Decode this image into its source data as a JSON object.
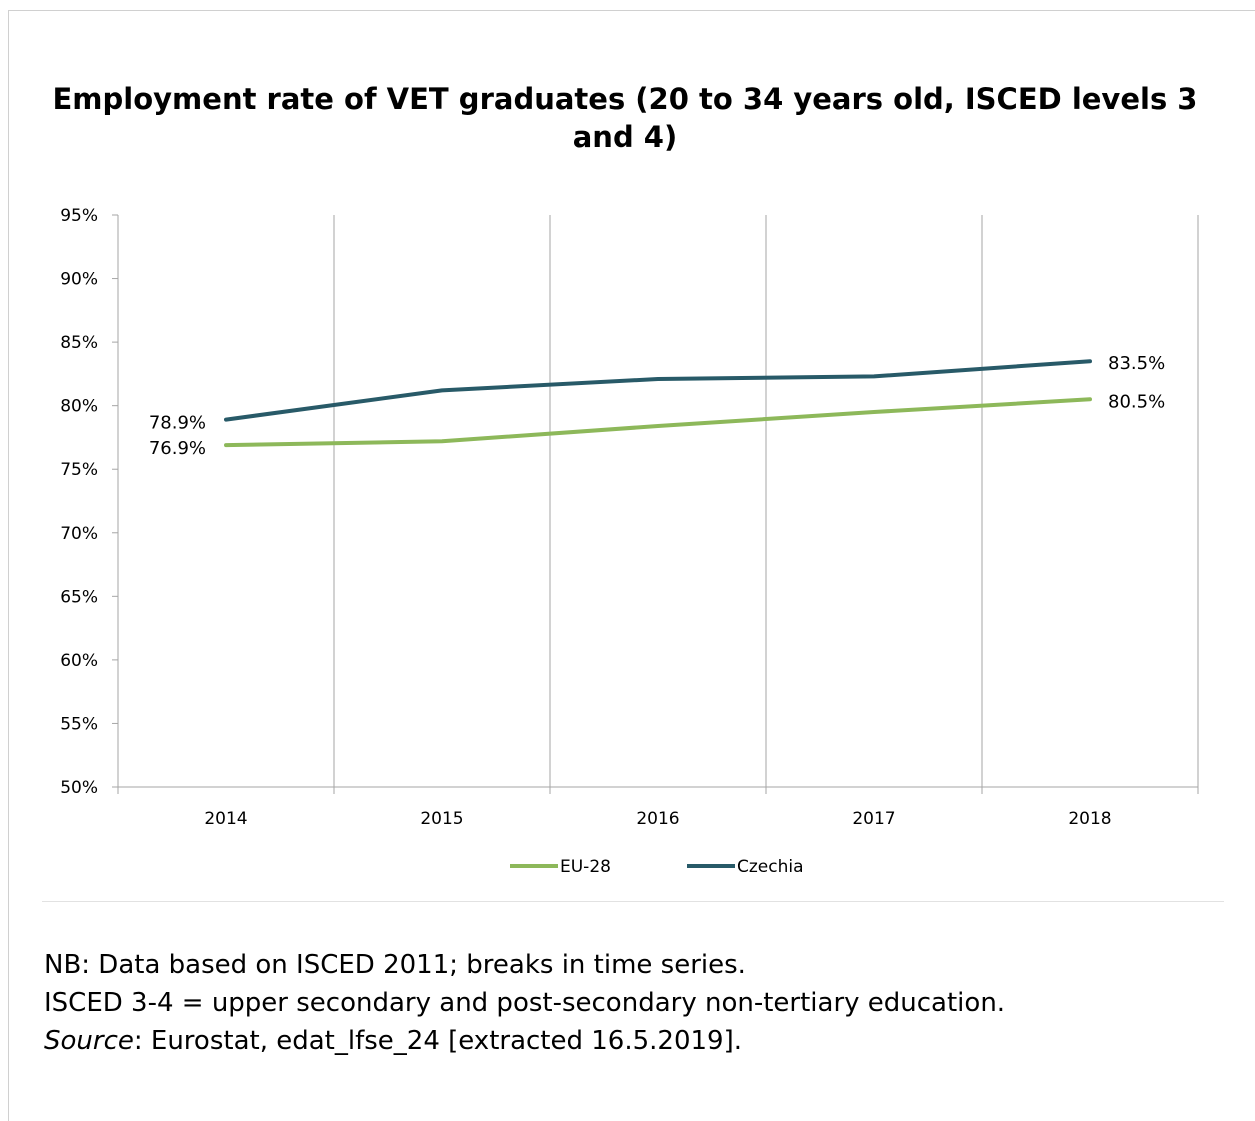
{
  "chart_data": {
    "type": "line",
    "title": "Employment rate of VET graduates (20 to 34 years old, ISCED levels 3 and 4)",
    "categories": [
      "2014",
      "2015",
      "2016",
      "2017",
      "2018"
    ],
    "ylim": [
      50,
      95
    ],
    "y_ticks": [
      50,
      55,
      60,
      65,
      70,
      75,
      80,
      85,
      90,
      95
    ],
    "y_tick_labels": [
      "50%",
      "55%",
      "60%",
      "65%",
      "70%",
      "75%",
      "80%",
      "85%",
      "90%",
      "95%"
    ],
    "xlabel": "",
    "ylabel": "",
    "grid": "vertical",
    "legend_position": "bottom",
    "series": [
      {
        "name": "EU-28",
        "color": "#8db85a",
        "values": [
          76.9,
          77.2,
          78.4,
          79.5,
          80.5
        ],
        "point_labels": [
          "76.9%",
          "",
          "",
          "",
          "80.5%"
        ]
      },
      {
        "name": "Czechia",
        "color": "#285a68",
        "values": [
          78.9,
          81.2,
          82.1,
          82.3,
          83.5
        ],
        "point_labels": [
          "78.9%",
          "",
          "",
          "",
          "83.5%"
        ]
      }
    ]
  },
  "notes": {
    "nb": "NB: Data based on ISCED 2011; breaks in time series.",
    "isced": "ISCED 3-4 = upper secondary and post-secondary non-tertiary education.",
    "source_label": "Source",
    "source_text": ": Eurostat, edat_lfse_24 [extracted 16.5.2019]."
  }
}
